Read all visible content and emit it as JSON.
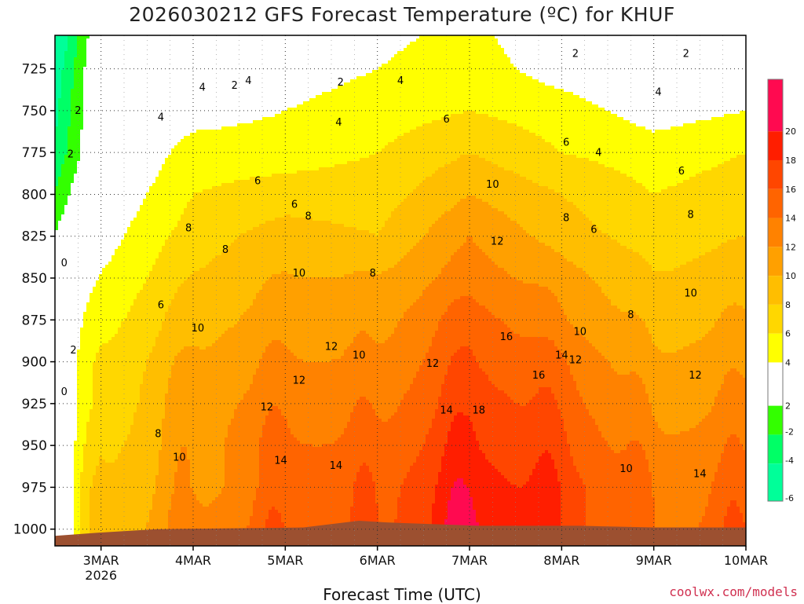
{
  "header": {
    "title": "2026030212 GFS Forecast Temperature (ºC) for KHUF"
  },
  "footer": {
    "xlabel": "Forecast Time (UTC)",
    "credit": "coolwx.com/models"
  },
  "chart_data": {
    "type": "heatmap",
    "title": "2026030212 GFS Forecast Temperature (ºC) for KHUF",
    "xlabel": "Forecast Time (UTC)",
    "ylabel": "",
    "x_ticks": [
      "3MAR",
      "4MAR",
      "5MAR",
      "6MAR",
      "7MAR",
      "8MAR",
      "9MAR",
      "10MAR"
    ],
    "x_year_label": "2026",
    "y_ticks": [
      725,
      750,
      775,
      800,
      825,
      850,
      875,
      900,
      925,
      950,
      975,
      1000
    ],
    "y_unit": "hPa",
    "ylim": [
      1010,
      705
    ],
    "xlim_days": [
      2.5,
      10.0
    ],
    "colorbar": {
      "levels": [
        20,
        18,
        16,
        14,
        12,
        10,
        8,
        6,
        4,
        2,
        -2,
        -4,
        -6
      ],
      "colors": [
        "#ff0a50",
        "#ff1e00",
        "#ff4600",
        "#ff6400",
        "#ff8200",
        "#ffa000",
        "#ffbe00",
        "#ffd700",
        "#ffff00",
        "#ffffff",
        "#33ff00",
        "#00ff66",
        "#00ff99"
      ]
    },
    "terrain_color": "#9c5030",
    "series": [
      {
        "time_day": 3.0,
        "temps_at_levels": [
          1,
          1,
          1,
          2,
          3,
          4,
          5,
          6,
          6,
          7,
          8,
          8
        ]
      },
      {
        "time_day": 4.0,
        "temps_at_levels": [
          2,
          3,
          5,
          6,
          7,
          8,
          9,
          10,
          11,
          11,
          11,
          12
        ]
      },
      {
        "time_day": 5.0,
        "temps_at_levels": [
          3,
          4,
          5,
          7,
          9,
          10,
          11,
          12,
          13,
          14,
          14,
          15
        ]
      },
      {
        "time_day": 6.0,
        "temps_at_levels": [
          4,
          5,
          6,
          7,
          8,
          10,
          11,
          12,
          13,
          14,
          15,
          15
        ]
      },
      {
        "time_day": 7.0,
        "temps_at_levels": [
          5,
          6,
          8,
          10,
          12,
          13,
          15,
          16,
          17,
          18,
          19,
          20
        ]
      },
      {
        "time_day": 8.0,
        "temps_at_levels": [
          3,
          5,
          6,
          8,
          9,
          11,
          12,
          14,
          15,
          16,
          17,
          17
        ]
      },
      {
        "time_day": 9.0,
        "temps_at_levels": [
          2,
          3,
          5,
          6,
          7,
          8,
          9,
          10,
          11,
          12,
          13,
          13
        ]
      },
      {
        "time_day": 10.0,
        "temps_at_levels": [
          2,
          4,
          6,
          7,
          8,
          9,
          10,
          11,
          12,
          13,
          14,
          15
        ]
      }
    ],
    "contour_labels": [
      {
        "t": 2.6,
        "p": 843,
        "text": "0"
      },
      {
        "t": 2.7,
        "p": 895,
        "text": "2"
      },
      {
        "t": 2.67,
        "p": 778,
        "text": "2"
      },
      {
        "t": 2.6,
        "p": 920,
        "text": "0"
      },
      {
        "t": 2.75,
        "p": 752,
        "text": "2"
      },
      {
        "t": 3.65,
        "p": 756,
        "text": "4"
      },
      {
        "t": 4.1,
        "p": 738,
        "text": "4"
      },
      {
        "t": 4.45,
        "p": 737,
        "text": "2"
      },
      {
        "t": 4.6,
        "p": 734,
        "text": "4"
      },
      {
        "t": 5.6,
        "p": 735,
        "text": "2"
      },
      {
        "t": 6.25,
        "p": 734,
        "text": "4"
      },
      {
        "t": 5.58,
        "p": 759,
        "text": "4"
      },
      {
        "t": 6.75,
        "p": 757,
        "text": "6"
      },
      {
        "t": 4.7,
        "p": 794,
        "text": "6"
      },
      {
        "t": 5.1,
        "p": 808,
        "text": "6"
      },
      {
        "t": 5.25,
        "p": 815,
        "text": "8"
      },
      {
        "t": 3.95,
        "p": 822,
        "text": "8"
      },
      {
        "t": 4.35,
        "p": 835,
        "text": "8"
      },
      {
        "t": 3.65,
        "p": 868,
        "text": "6"
      },
      {
        "t": 4.05,
        "p": 882,
        "text": "10"
      },
      {
        "t": 5.15,
        "p": 849,
        "text": "10"
      },
      {
        "t": 5.95,
        "p": 849,
        "text": "8"
      },
      {
        "t": 5.5,
        "p": 893,
        "text": "12"
      },
      {
        "t": 5.8,
        "p": 898,
        "text": "10"
      },
      {
        "t": 5.15,
        "p": 913,
        "text": "12"
      },
      {
        "t": 4.8,
        "p": 929,
        "text": "12"
      },
      {
        "t": 3.62,
        "p": 945,
        "text": "8"
      },
      {
        "t": 3.85,
        "p": 959,
        "text": "10"
      },
      {
        "t": 4.95,
        "p": 961,
        "text": "14"
      },
      {
        "t": 5.55,
        "p": 964,
        "text": "14"
      },
      {
        "t": 6.6,
        "p": 903,
        "text": "12"
      },
      {
        "t": 6.75,
        "p": 931,
        "text": "14"
      },
      {
        "t": 7.1,
        "p": 931,
        "text": "18"
      },
      {
        "t": 7.4,
        "p": 887,
        "text": "16"
      },
      {
        "t": 7.75,
        "p": 910,
        "text": "16"
      },
      {
        "t": 8.0,
        "p": 898,
        "text": "14"
      },
      {
        "t": 8.15,
        "p": 901,
        "text": "12"
      },
      {
        "t": 8.2,
        "p": 884,
        "text": "10"
      },
      {
        "t": 7.3,
        "p": 830,
        "text": "12"
      },
      {
        "t": 7.25,
        "p": 796,
        "text": "10"
      },
      {
        "t": 8.05,
        "p": 771,
        "text": "6"
      },
      {
        "t": 8.05,
        "p": 816,
        "text": "8"
      },
      {
        "t": 8.4,
        "p": 777,
        "text": "4"
      },
      {
        "t": 8.35,
        "p": 823,
        "text": "6"
      },
      {
        "t": 8.15,
        "p": 718,
        "text": "2"
      },
      {
        "t": 9.35,
        "p": 718,
        "text": "2"
      },
      {
        "t": 9.05,
        "p": 741,
        "text": "4"
      },
      {
        "t": 9.3,
        "p": 788,
        "text": "6"
      },
      {
        "t": 9.4,
        "p": 814,
        "text": "8"
      },
      {
        "t": 9.4,
        "p": 861,
        "text": "10"
      },
      {
        "t": 8.75,
        "p": 874,
        "text": "8"
      },
      {
        "t": 9.45,
        "p": 910,
        "text": "12"
      },
      {
        "t": 8.7,
        "p": 966,
        "text": "10"
      },
      {
        "t": 9.5,
        "p": 969,
        "text": "14"
      }
    ]
  }
}
